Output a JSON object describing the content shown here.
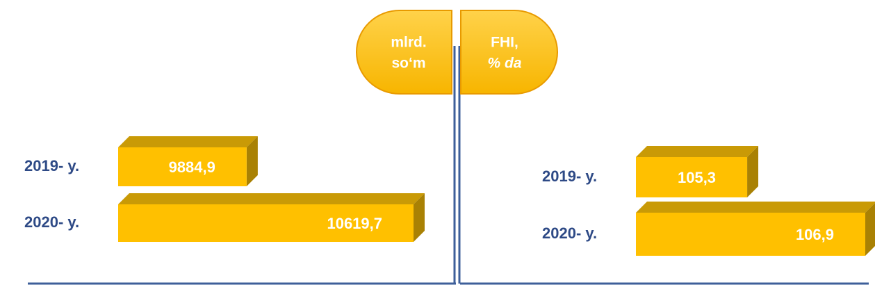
{
  "chart_data": [
    {
      "type": "bar3d",
      "title_lines": [
        "mlrd.",
        "so‘m"
      ],
      "categories": [
        "2019- y.",
        "2020- y."
      ],
      "values": [
        9884.9,
        10619.7
      ],
      "value_labels": [
        "9884,9",
        "10619,7"
      ],
      "color": "#FFC000"
    },
    {
      "type": "bar3d",
      "title_lines": [
        "FHI,",
        "% da"
      ],
      "categories": [
        "2019- y.",
        "2020- y."
      ],
      "values": [
        105.3,
        106.9
      ],
      "value_labels": [
        "105,3",
        "106,9"
      ],
      "color": "#FFC000"
    }
  ]
}
